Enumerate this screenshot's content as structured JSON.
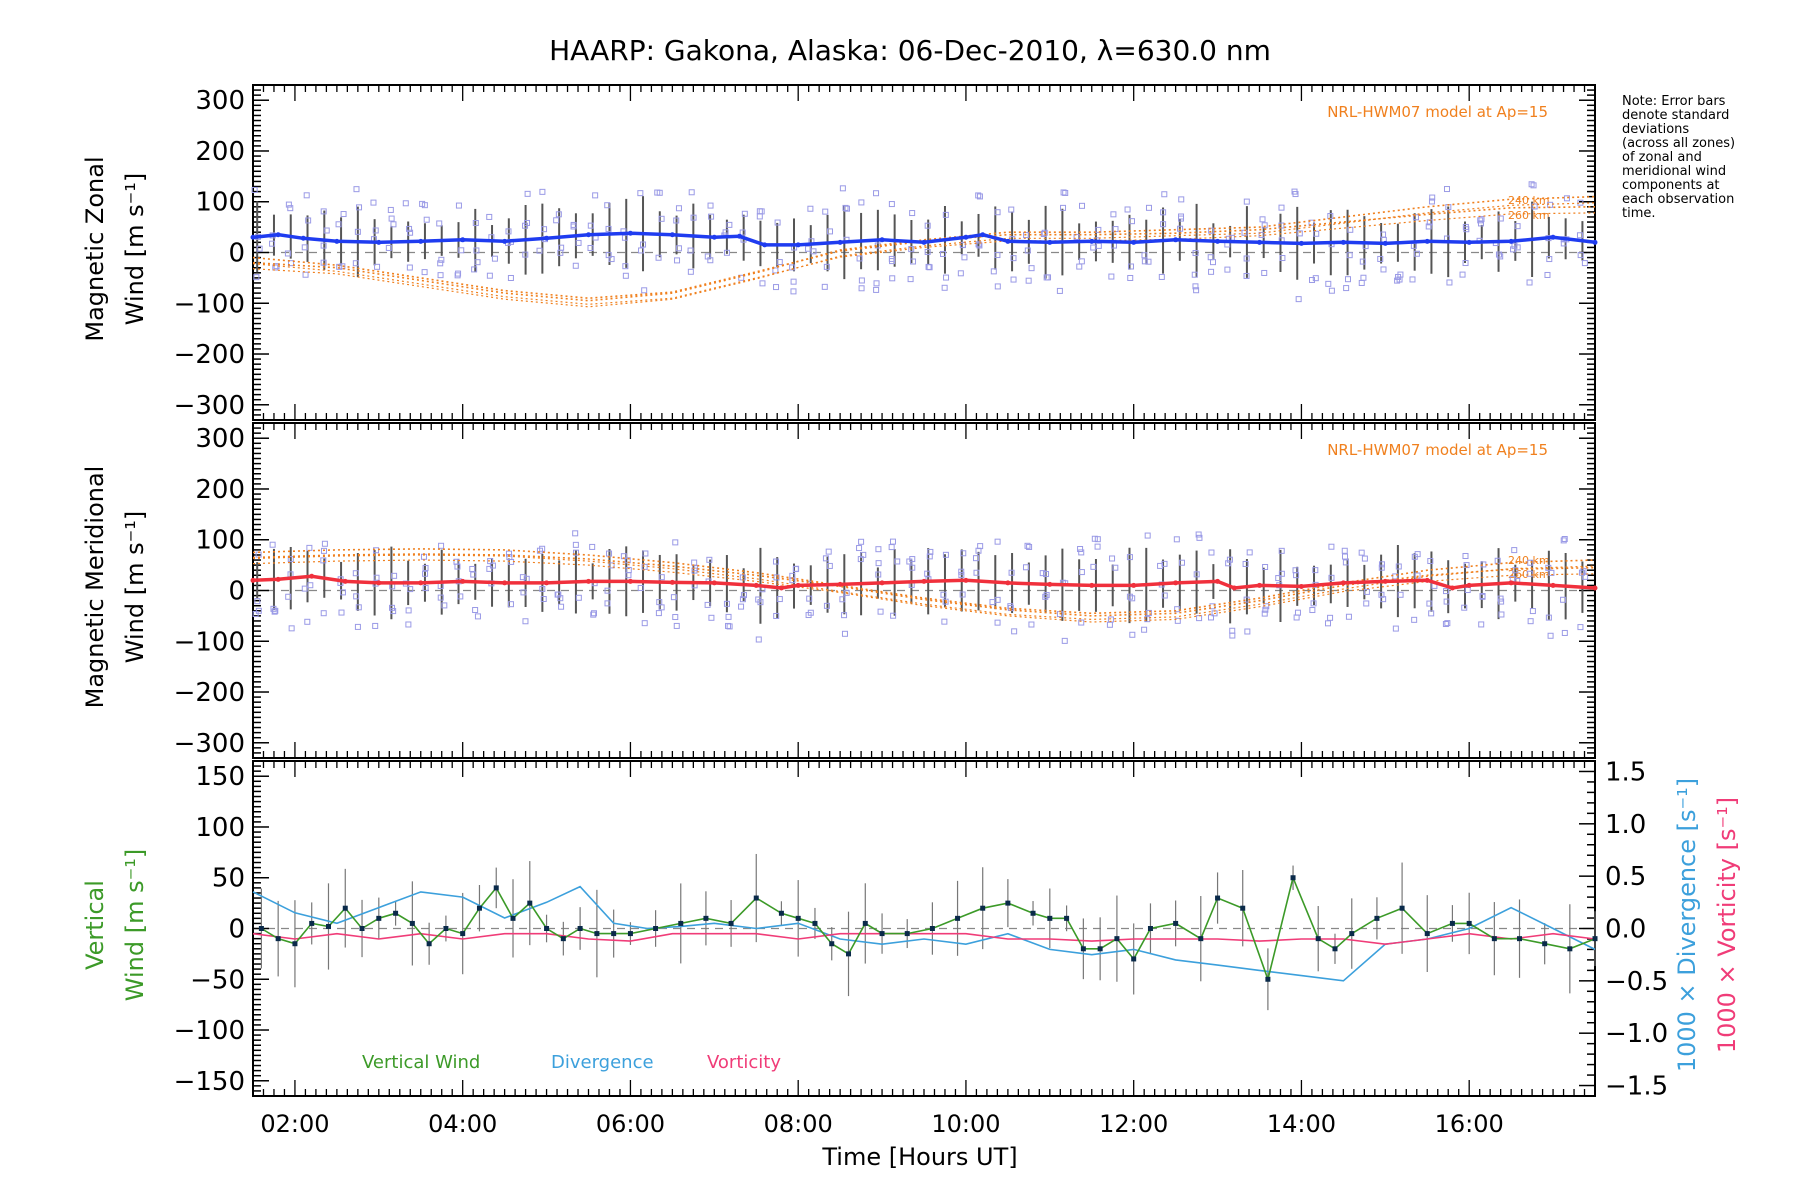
{
  "title": "HAARP: Gakona,  Alaska: 06-Dec-2010, λ=630.0 nm",
  "note": [
    "Note: Error bars",
    "denote standard",
    "deviations",
    "(across all zones)",
    "of zonal and",
    "meridional wind",
    "components at",
    "each observation",
    "time."
  ],
  "x_axis": {
    "label": "Time [Hours UT]",
    "range": [
      1.5,
      17.5
    ],
    "ticks": [
      {
        "v": 2,
        "label": "02:00"
      },
      {
        "v": 4,
        "label": "04:00"
      },
      {
        "v": 6,
        "label": "06:00"
      },
      {
        "v": 8,
        "label": "08:00"
      },
      {
        "v": 10,
        "label": "10:00"
      },
      {
        "v": 12,
        "label": "12:00"
      },
      {
        "v": 14,
        "label": "14:00"
      },
      {
        "v": 16,
        "label": "16:00"
      }
    ]
  },
  "colors": {
    "zonal": "#1f3cf0",
    "meridional": "#f0303c",
    "model": "#f0801e",
    "scatter": "#9a9ae6",
    "vertical": "#3c9a28",
    "divergence": "#3ca0dc",
    "vorticity": "#f03c78",
    "errorbar": "#555555"
  },
  "panels": {
    "zonal": {
      "ylabel": [
        "Magnetic Zonal",
        "Wind [m s⁻¹]"
      ],
      "model_label": "NRL-HWM07 model at Ap=15",
      "alt_labels": [
        "240 km",
        "260 km"
      ],
      "ylim": [
        -330,
        330
      ],
      "yticks": [
        -300,
        -200,
        -100,
        0,
        100,
        200,
        300
      ]
    },
    "meridional": {
      "ylabel": [
        "Magnetic Meridional",
        "Wind [m s⁻¹]"
      ],
      "model_label": "NRL-HWM07 model at Ap=15",
      "alt_labels": [
        "240 km",
        "260 km"
      ],
      "ylim": [
        -330,
        330
      ],
      "yticks": [
        -300,
        -200,
        -100,
        0,
        100,
        200,
        300
      ]
    },
    "vertical": {
      "ylabel_left": [
        "Vertical",
        "Wind [m s⁻¹]"
      ],
      "ylabel_right_div": "1000 × Divergence [s⁻¹]",
      "ylabel_right_vor": "1000 × Vorticity [s⁻¹]",
      "ylim": [
        -165,
        165
      ],
      "yticks": [
        -150,
        -100,
        -50,
        0,
        50,
        100,
        150
      ],
      "ylim_right": [
        -1.6,
        1.6
      ],
      "yticks_right": [
        -1.5,
        -1.0,
        -0.5,
        0.0,
        0.5,
        1.0,
        1.5
      ],
      "legend": [
        "Vertical Wind",
        "Divergence",
        "Vorticity"
      ]
    }
  },
  "chart_data": [
    {
      "type": "line",
      "title": "HAARP: Gakona,  Alaska: 06-Dec-2010, λ=630.0 nm",
      "ylabel": "Magnetic Zonal Wind [m s-1]",
      "xlabel": "",
      "ylim": [
        -330,
        330
      ],
      "series": [
        {
          "name": "zonal",
          "x": [
            1.5,
            1.8,
            2.1,
            2.5,
            3.0,
            3.5,
            4.0,
            4.5,
            5.0,
            5.5,
            6.0,
            6.5,
            7.0,
            7.3,
            7.6,
            8.0,
            8.5,
            9.0,
            9.5,
            10.0,
            10.2,
            10.5,
            11.0,
            11.5,
            12.0,
            12.5,
            13.0,
            13.5,
            14.0,
            14.5,
            15.0,
            15.5,
            16.0,
            16.5,
            17.0,
            17.5
          ],
          "y": [
            30,
            35,
            28,
            22,
            20,
            22,
            25,
            22,
            28,
            35,
            38,
            35,
            30,
            32,
            15,
            15,
            20,
            25,
            20,
            30,
            35,
            22,
            20,
            22,
            20,
            25,
            22,
            20,
            18,
            20,
            18,
            22,
            20,
            22,
            30,
            20
          ]
        },
        {
          "name": "240 km",
          "x": [
            1.5,
            2.5,
            3.5,
            4.5,
            5.5,
            6.5,
            7.5,
            8.5,
            9.5,
            10.5,
            11.5,
            12.5,
            13.5,
            14.5,
            15.5,
            16.5,
            17.5
          ],
          "y": [
            -20,
            -30,
            -55,
            -80,
            -95,
            -80,
            -40,
            5,
            25,
            40,
            40,
            45,
            50,
            70,
            90,
            105,
            110
          ]
        },
        {
          "name": "260 km",
          "x": [
            1.5,
            2.5,
            3.5,
            4.5,
            5.5,
            6.5,
            7.5,
            8.5,
            9.5,
            10.5,
            11.5,
            12.5,
            13.5,
            14.5,
            15.5,
            16.5,
            17.5
          ],
          "y": [
            -10,
            -25,
            -50,
            -75,
            -90,
            -78,
            -38,
            3,
            22,
            35,
            35,
            38,
            45,
            60,
            75,
            88,
            90
          ]
        }
      ]
    },
    {
      "type": "line",
      "ylabel": "Magnetic Meridional Wind [m s-1]",
      "xlabel": "",
      "ylim": [
        -330,
        330
      ],
      "series": [
        {
          "name": "meridional",
          "x": [
            1.5,
            1.8,
            2.2,
            2.6,
            3.0,
            3.5,
            4.0,
            4.5,
            5.0,
            5.5,
            6.0,
            6.5,
            7.0,
            7.5,
            7.8,
            8.0,
            8.5,
            9.0,
            9.5,
            10.0,
            10.5,
            11.0,
            11.5,
            12.0,
            12.5,
            13.0,
            13.2,
            13.5,
            14.0,
            14.5,
            15.0,
            15.5,
            15.8,
            16.0,
            16.5,
            17.0,
            17.5
          ],
          "y": [
            20,
            22,
            28,
            18,
            15,
            15,
            18,
            15,
            15,
            18,
            18,
            16,
            15,
            10,
            5,
            10,
            12,
            15,
            18,
            20,
            15,
            12,
            10,
            10,
            15,
            18,
            5,
            10,
            8,
            15,
            18,
            20,
            5,
            10,
            15,
            10,
            5
          ]
        },
        {
          "name": "240 km",
          "x": [
            1.5,
            2.5,
            3.5,
            4.5,
            5.5,
            6.5,
            7.5,
            8.5,
            9.5,
            10.5,
            11.5,
            12.5,
            13.5,
            14.5,
            15.5,
            16.5,
            17.5
          ],
          "y": [
            75,
            80,
            82,
            80,
            70,
            55,
            35,
            10,
            -15,
            -35,
            -45,
            -40,
            -15,
            15,
            40,
            55,
            60
          ]
        },
        {
          "name": "260 km",
          "x": [
            1.5,
            2.5,
            3.5,
            4.5,
            5.5,
            6.5,
            7.5,
            8.5,
            9.5,
            10.5,
            11.5,
            12.5,
            13.5,
            14.5,
            15.5,
            16.5,
            17.5
          ],
          "y": [
            65,
            70,
            72,
            70,
            62,
            48,
            30,
            8,
            -18,
            -38,
            -50,
            -45,
            -20,
            10,
            30,
            42,
            45
          ]
        }
      ]
    },
    {
      "type": "line",
      "xlabel": "Time [Hours UT]",
      "ylabel": "Vertical Wind [m s-1]",
      "ylim": [
        -165,
        165
      ],
      "series": [
        {
          "name": "Vertical Wind",
          "x": [
            1.6,
            1.8,
            2.0,
            2.2,
            2.4,
            2.6,
            2.8,
            3.0,
            3.2,
            3.4,
            3.6,
            3.8,
            4.0,
            4.2,
            4.4,
            4.6,
            4.8,
            5.0,
            5.2,
            5.4,
            5.6,
            5.8,
            6.0,
            6.3,
            6.6,
            6.9,
            7.2,
            7.5,
            7.8,
            8.0,
            8.2,
            8.4,
            8.6,
            8.8,
            9.0,
            9.3,
            9.6,
            9.9,
            10.2,
            10.5,
            10.8,
            11.0,
            11.2,
            11.4,
            11.6,
            11.8,
            12.0,
            12.2,
            12.5,
            12.8,
            13.0,
            13.3,
            13.6,
            13.9,
            14.2,
            14.4,
            14.6,
            14.9,
            15.2,
            15.5,
            15.8,
            16.0,
            16.3,
            16.6,
            16.9,
            17.2,
            17.5
          ],
          "y": [
            0,
            -10,
            -15,
            5,
            2,
            20,
            0,
            10,
            15,
            5,
            -15,
            0,
            -5,
            20,
            40,
            10,
            25,
            0,
            -10,
            0,
            -5,
            -5,
            -5,
            0,
            5,
            10,
            5,
            30,
            15,
            10,
            5,
            -15,
            -25,
            5,
            -5,
            -5,
            0,
            10,
            20,
            25,
            15,
            10,
            10,
            -20,
            -20,
            -10,
            -30,
            0,
            5,
            -10,
            30,
            20,
            -50,
            50,
            -10,
            -20,
            -5,
            10,
            20,
            -5,
            5,
            5,
            -10,
            -10,
            -15,
            -20,
            -10
          ]
        },
        {
          "name": "Divergence",
          "x": [
            1.5,
            2.0,
            2.5,
            3.0,
            3.5,
            4.0,
            4.5,
            5.0,
            5.4,
            5.8,
            6.2,
            6.6,
            7.0,
            7.5,
            8.0,
            8.5,
            9.0,
            9.5,
            10.0,
            10.5,
            11.0,
            11.5,
            12.0,
            12.5,
            13.0,
            13.5,
            14.0,
            14.5,
            15.0,
            15.5,
            16.0,
            16.5,
            17.0,
            17.5
          ],
          "y": [
            0.35,
            0.15,
            0.05,
            0.2,
            0.35,
            0.3,
            0.1,
            0.25,
            0.4,
            0.05,
            0.0,
            0.02,
            0.05,
            0.0,
            0.05,
            -0.1,
            -0.15,
            -0.1,
            -0.15,
            -0.05,
            -0.2,
            -0.25,
            -0.2,
            -0.3,
            -0.35,
            -0.4,
            -0.45,
            -0.5,
            -0.15,
            -0.1,
            0.0,
            0.2,
            0.0,
            -0.2
          ]
        },
        {
          "name": "Vorticity",
          "x": [
            1.5,
            2.0,
            2.5,
            3.0,
            3.5,
            4.0,
            4.5,
            5.0,
            5.5,
            6.0,
            6.5,
            7.0,
            7.5,
            8.0,
            8.5,
            9.0,
            9.5,
            10.0,
            10.5,
            11.0,
            11.5,
            12.0,
            12.5,
            13.0,
            13.5,
            14.0,
            14.5,
            15.0,
            15.5,
            16.0,
            16.5,
            17.0,
            17.5
          ],
          "y": [
            -0.05,
            -0.1,
            -0.05,
            -0.1,
            -0.05,
            -0.1,
            -0.05,
            -0.05,
            -0.1,
            -0.12,
            -0.05,
            -0.05,
            -0.05,
            -0.1,
            -0.05,
            -0.05,
            -0.05,
            -0.05,
            -0.1,
            -0.1,
            -0.12,
            -0.1,
            -0.1,
            -0.1,
            -0.12,
            -0.1,
            -0.1,
            -0.15,
            -0.1,
            -0.05,
            -0.1,
            -0.05,
            -0.1
          ]
        }
      ]
    }
  ]
}
